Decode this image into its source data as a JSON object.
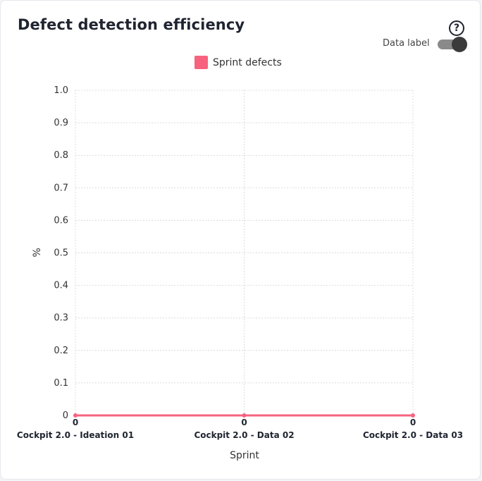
{
  "header": {
    "title": "Defect detection efficiency",
    "help_icon": "question-circle-icon",
    "help_glyph": "?"
  },
  "controls": {
    "data_label_text": "Data label",
    "data_label_on": true
  },
  "colors": {
    "series": "#f7637e",
    "grid": "#dcdcdc"
  },
  "chart_data": {
    "type": "line",
    "title": "",
    "xlabel": "Sprint",
    "ylabel": "%",
    "ylim": [
      0,
      1.0
    ],
    "yticks": [
      "0",
      "0.1",
      "0.2",
      "0.3",
      "0.4",
      "0.5",
      "0.6",
      "0.7",
      "0.8",
      "0.9",
      "1.0"
    ],
    "categories": [
      "Cockpit 2.0 - Ideation 01",
      "Cockpit 2.0 - Data 02",
      "Cockpit 2.0 - Data 03"
    ],
    "series": [
      {
        "name": "Sprint defects",
        "values": [
          0,
          0,
          0
        ],
        "labels": [
          "0",
          "0",
          "0"
        ]
      }
    ],
    "grid": true,
    "legend": "top-center"
  }
}
